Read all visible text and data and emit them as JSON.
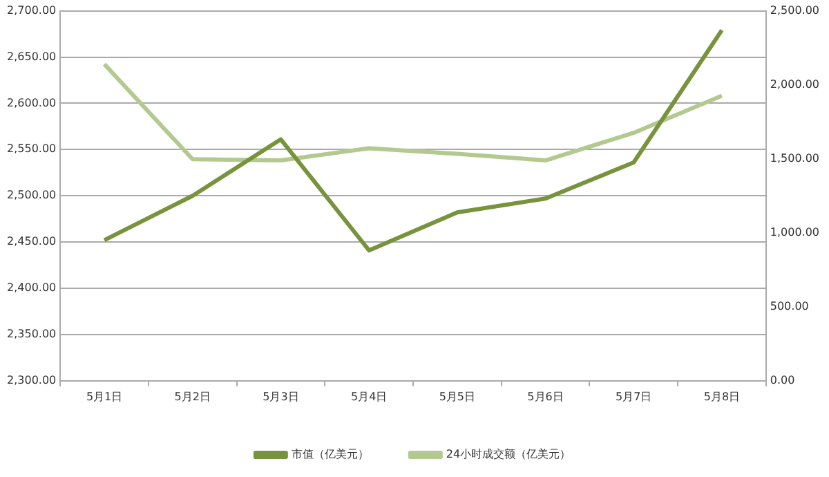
{
  "chart_data": {
    "type": "line",
    "categories": [
      "5月1日",
      "5月2日",
      "5月3日",
      "5月4日",
      "5月5日",
      "5月6日",
      "5月7日",
      "5月8日"
    ],
    "series": [
      {
        "name": "市值（亿美元）",
        "color": "#77933c",
        "values": [
          2452,
          2500,
          2561,
          2441,
          2482,
          2497,
          2536,
          2679
        ]
      },
      {
        "name": "24小时成交额（亿美元）",
        "color": "#b3c98f",
        "axis": "y2",
        "values": [
          2139,
          1497,
          1489,
          1571,
          1534,
          1489,
          1675,
          1926
        ]
      }
    ],
    "ylim": [
      2300,
      2700
    ],
    "yticks": [
      {
        "value": 2300,
        "label": "2,300.00"
      },
      {
        "value": 2350,
        "label": "2,350.00"
      },
      {
        "value": 2400,
        "label": "2,400.00"
      },
      {
        "value": 2450,
        "label": "2,450.00"
      },
      {
        "value": 2500,
        "label": "2,500.00"
      },
      {
        "value": 2550,
        "label": "2,550.00"
      },
      {
        "value": 2600,
        "label": "2,600.00"
      },
      {
        "value": 2650,
        "label": "2,650.00"
      },
      {
        "value": 2700,
        "label": "2,700.00"
      }
    ],
    "y2lim": [
      0,
      2500
    ],
    "y2ticks": [
      {
        "value": 0,
        "label": "0.00"
      },
      {
        "value": 500,
        "label": "500.00"
      },
      {
        "value": 1000,
        "label": "1,000.00"
      },
      {
        "value": 1500,
        "label": "1,500.00"
      },
      {
        "value": 2000,
        "label": "2,000.00"
      },
      {
        "value": 2500,
        "label": "2,500.00"
      }
    ],
    "grid": "y",
    "legend": "bottom",
    "marker": "none",
    "line_style": "solid"
  }
}
